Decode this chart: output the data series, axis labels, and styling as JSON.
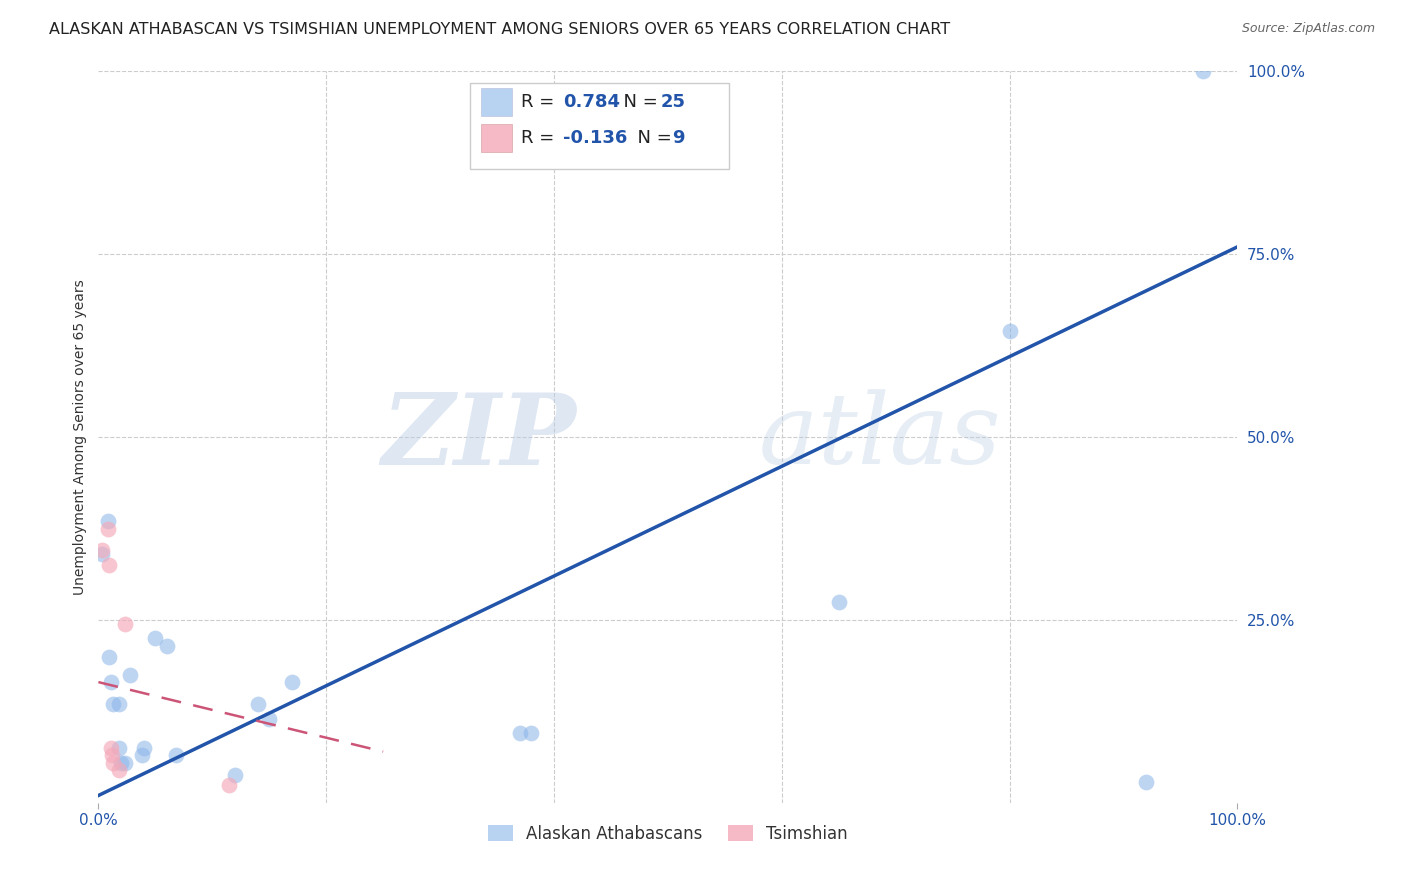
{
  "title": "ALASKAN ATHABASCAN VS TSIMSHIAN UNEMPLOYMENT AMONG SENIORS OVER 65 YEARS CORRELATION CHART",
  "source": "Source: ZipAtlas.com",
  "ylabel": "Unemployment Among Seniors over 65 years",
  "xlim": [
    0.0,
    1.0
  ],
  "ylim": [
    0.0,
    1.0
  ],
  "xtick_labels": [
    "0.0%",
    "100.0%"
  ],
  "xtick_positions": [
    0.0,
    1.0
  ],
  "ytick_labels": [
    "100.0%",
    "75.0%",
    "50.0%",
    "25.0%"
  ],
  "ytick_positions": [
    1.0,
    0.75,
    0.5,
    0.25
  ],
  "grid_color": "#cccccc",
  "background_color": "#ffffff",
  "watermark_zip": "ZIP",
  "watermark_atlas": "atlas",
  "blue_color": "#8ab4e8",
  "pink_color": "#f4a8b8",
  "blue_line_color": "#2255aa",
  "pink_line_color": "#cc5577",
  "blue_scatter": [
    [
      0.003,
      0.34
    ],
    [
      0.008,
      0.385
    ],
    [
      0.009,
      0.2
    ],
    [
      0.011,
      0.165
    ],
    [
      0.013,
      0.135
    ],
    [
      0.018,
      0.135
    ],
    [
      0.018,
      0.075
    ],
    [
      0.02,
      0.055
    ],
    [
      0.023,
      0.055
    ],
    [
      0.028,
      0.175
    ],
    [
      0.038,
      0.065
    ],
    [
      0.04,
      0.075
    ],
    [
      0.05,
      0.225
    ],
    [
      0.06,
      0.215
    ],
    [
      0.068,
      0.065
    ],
    [
      0.12,
      0.038
    ],
    [
      0.14,
      0.135
    ],
    [
      0.15,
      0.115
    ],
    [
      0.17,
      0.165
    ],
    [
      0.37,
      0.095
    ],
    [
      0.38,
      0.095
    ],
    [
      0.65,
      0.275
    ],
    [
      0.8,
      0.645
    ],
    [
      0.92,
      0.028
    ],
    [
      0.97,
      1.0
    ]
  ],
  "pink_scatter": [
    [
      0.003,
      0.345
    ],
    [
      0.008,
      0.375
    ],
    [
      0.009,
      0.325
    ],
    [
      0.011,
      0.075
    ],
    [
      0.012,
      0.065
    ],
    [
      0.013,
      0.055
    ],
    [
      0.018,
      0.045
    ],
    [
      0.023,
      0.245
    ],
    [
      0.115,
      0.025
    ]
  ],
  "blue_line_x": [
    0.0,
    1.0
  ],
  "blue_line_y": [
    0.01,
    0.76
  ],
  "pink_line_x": [
    0.0,
    0.25
  ],
  "pink_line_y": [
    0.165,
    0.07
  ],
  "blue_R": 0.784,
  "blue_N": 25,
  "pink_R": -0.136,
  "pink_N": 9,
  "legend_label_blue": "Alaskan Athabascans",
  "legend_label_pink": "Tsimshian",
  "title_fontsize": 11.5,
  "axis_label_fontsize": 10,
  "tick_fontsize": 11,
  "legend_fontsize": 13
}
